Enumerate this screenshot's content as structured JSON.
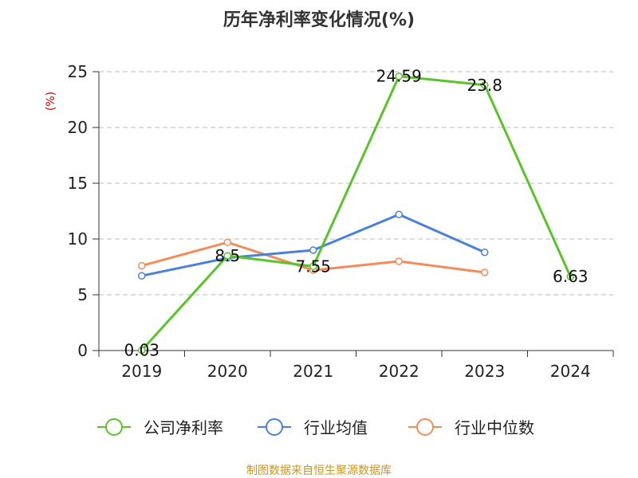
{
  "chart_data": {
    "type": "line",
    "title": "历年净利率变化情况(%)",
    "ylabel": "(%)",
    "categories": [
      "2019",
      "2020",
      "2021",
      "2022",
      "2023",
      "2024"
    ],
    "ylim": [
      0,
      25
    ],
    "yticks": [
      0,
      5,
      10,
      15,
      20,
      25
    ],
    "grid": true,
    "legend_position": "bottom",
    "series": [
      {
        "name": "公司净利率",
        "color": "#5bc32a",
        "values": [
          0.03,
          8.5,
          7.55,
          24.59,
          23.8,
          6.63
        ],
        "labels": [
          "0.03",
          "8.5",
          "7.55",
          "24.59",
          "23.8",
          "6.63"
        ]
      },
      {
        "name": "行业均值",
        "color": "#4a7fdc",
        "values": [
          6.7,
          8.3,
          9.0,
          12.2,
          8.8,
          null
        ]
      },
      {
        "name": "行业中位数",
        "color": "#f28c5a",
        "values": [
          7.6,
          9.7,
          7.2,
          8.0,
          7.0,
          null
        ]
      }
    ]
  },
  "footer": {
    "source": "制图数据来自恒生聚源数据库"
  }
}
